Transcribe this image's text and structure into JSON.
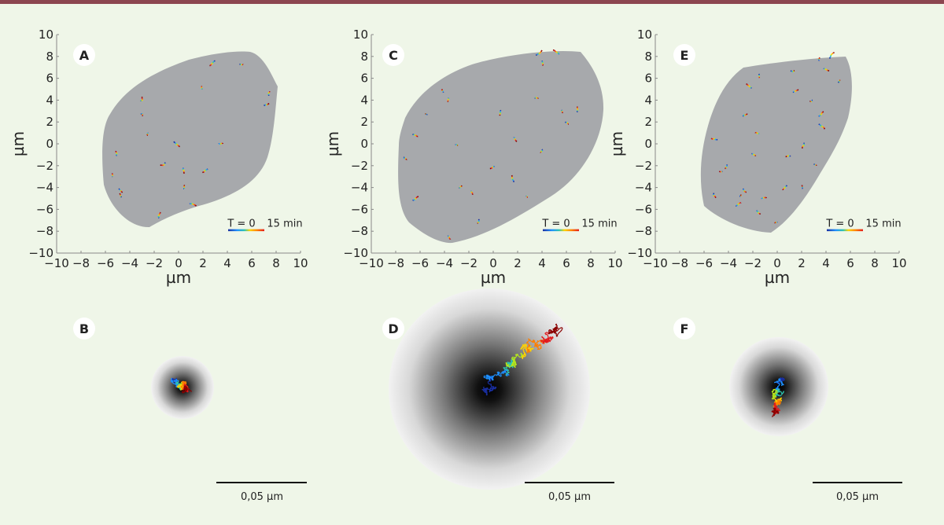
{
  "colors": {
    "top_bar": "#8c4650",
    "background": "#eff6e8",
    "cell": "#a7a9ac",
    "time_scale": [
      "#1a2fa0",
      "#1e90ff",
      "#2ec4b0",
      "#b5e61d",
      "#ffd200",
      "#ff7f00",
      "#e31a1c",
      "#8b0000"
    ]
  },
  "chart_data": [
    {
      "type": "scatter",
      "panel": "A",
      "xlabel": "µm",
      "ylabel": "µm",
      "xlim": [
        -10,
        10
      ],
      "ylim": [
        -10,
        10
      ],
      "xticks": [
        "−10",
        "−8",
        "−6",
        "−4",
        "−2",
        "0",
        "2",
        "4",
        "6",
        "8",
        "10"
      ],
      "yticks": [
        "−10",
        "−8",
        "−6",
        "−4",
        "−2",
        "0",
        "2",
        "4",
        "6",
        "8",
        "10"
      ],
      "legend": {
        "start": "T = 0",
        "end": "15 min",
        "placement": "bottom-right"
      },
      "points": [
        [
          3,
          7.6
        ],
        [
          5,
          7.3
        ],
        [
          1.9,
          5
        ],
        [
          7.4,
          4.4
        ],
        [
          7,
          3.5
        ],
        [
          -3.1,
          3.9
        ],
        [
          -3.1,
          2.7
        ],
        [
          -2.5,
          1
        ],
        [
          -0.4,
          0.2
        ],
        [
          3.3,
          0
        ],
        [
          -5.1,
          -1.1
        ],
        [
          -1.1,
          -1.7
        ],
        [
          0.4,
          -2.2
        ],
        [
          2.4,
          -2.3
        ],
        [
          -5.4,
          -3
        ],
        [
          -4.9,
          -4.1
        ],
        [
          -4.7,
          -4.9
        ],
        [
          0.4,
          -4.1
        ],
        [
          0.9,
          -5.5
        ],
        [
          -1.6,
          -6.8
        ]
      ]
    },
    {
      "type": "scatter",
      "panel": "C",
      "xlabel": "µm",
      "ylabel": "µm",
      "xlim": [
        -10,
        10
      ],
      "ylim": [
        -10,
        10
      ],
      "xticks": [
        "−10",
        "−8",
        "−6",
        "−4",
        "−2",
        "0",
        "2",
        "4",
        "6",
        "8",
        "10"
      ],
      "yticks": [
        "−10",
        "−8",
        "−6",
        "−4",
        "−2",
        "0",
        "2",
        "4",
        "6",
        "8",
        "10"
      ],
      "legend": {
        "start": "T = 0",
        "end": "15 min",
        "placement": "bottom-right"
      },
      "points": [
        [
          3.5,
          8.1
        ],
        [
          5.4,
          8.2
        ],
        [
          4,
          7.6
        ],
        [
          -4.1,
          4.7
        ],
        [
          -3.7,
          4.2
        ],
        [
          0.6,
          3.1
        ],
        [
          3.4,
          4.2
        ],
        [
          5.6,
          3.1
        ],
        [
          6.9,
          2.9
        ],
        [
          -5.4,
          2.7
        ],
        [
          5.9,
          2
        ],
        [
          -6.6,
          0.9
        ],
        [
          -3.1,
          -0.1
        ],
        [
          1.7,
          0.6
        ],
        [
          4,
          -0.5
        ],
        [
          -7.3,
          -1.2
        ],
        [
          0.1,
          -2.1
        ],
        [
          -2.8,
          -4
        ],
        [
          -1.8,
          -4.3
        ],
        [
          1.7,
          -3.5
        ],
        [
          2.7,
          -4.8
        ],
        [
          -6.6,
          -5.2
        ],
        [
          -1.2,
          -6.9
        ],
        [
          -3.7,
          -8.4
        ]
      ]
    },
    {
      "type": "scatter",
      "panel": "E",
      "xlabel": "µm",
      "ylabel": "µm",
      "xlim": [
        -10,
        10
      ],
      "ylim": [
        -10,
        10
      ],
      "xticks": [
        "−10",
        "−8",
        "−6",
        "−4",
        "−2",
        "0",
        "2",
        "4",
        "6",
        "8",
        "10"
      ],
      "yticks": [
        "−10",
        "−8",
        "−6",
        "−4",
        "−2",
        "0",
        "2",
        "4",
        "6",
        "8",
        "10"
      ],
      "legend": {
        "start": "T = 0",
        "end": "15 min",
        "placement": "bottom-right"
      },
      "points": [
        [
          3.4,
          7.6
        ],
        [
          4.3,
          7.8
        ],
        [
          3.8,
          6.9
        ],
        [
          -1.5,
          6.4
        ],
        [
          1.1,
          6.7
        ],
        [
          -2.1,
          5.1
        ],
        [
          5,
          5.6
        ],
        [
          1.3,
          4.7
        ],
        [
          2.9,
          4
        ],
        [
          -2.8,
          2.5
        ],
        [
          3.4,
          2.5
        ],
        [
          3.4,
          1.8
        ],
        [
          -1.5,
          0.9
        ],
        [
          -4.9,
          0.4
        ],
        [
          2.2,
          0.1
        ],
        [
          -2.1,
          -0.9
        ],
        [
          1.1,
          -1.1
        ],
        [
          -4.1,
          -1.9
        ],
        [
          -4.5,
          -2.5
        ],
        [
          3,
          -1.9
        ],
        [
          0.8,
          -3.8
        ],
        [
          2.1,
          -4.1
        ],
        [
          -2.8,
          -4.1
        ],
        [
          -3.1,
          -4.8
        ],
        [
          -1.3,
          -5
        ],
        [
          -5.2,
          -4.5
        ],
        [
          -3.4,
          -5.7
        ],
        [
          -1.7,
          -6.1
        ],
        [
          0,
          -7.2
        ]
      ]
    }
  ],
  "panels": {
    "A": {
      "label": "A"
    },
    "B": {
      "label": "B",
      "scale_bar": "0,05 µm"
    },
    "C": {
      "label": "C"
    },
    "D": {
      "label": "D",
      "scale_bar": "0,05 µm"
    },
    "E": {
      "label": "E"
    },
    "F": {
      "label": "F",
      "scale_bar": "0,05 µm"
    }
  }
}
